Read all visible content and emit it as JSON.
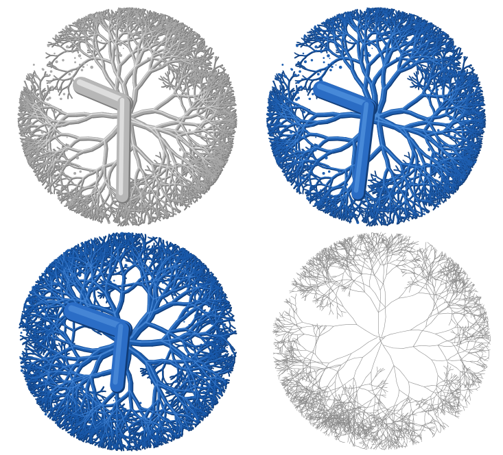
{
  "panels": [
    {
      "id": "panel-tl",
      "render": "surface-gray",
      "color": "#a9a9a9",
      "highlight": "#e4e4e4",
      "trunk": "#b7b7b7"
    },
    {
      "id": "panel-tr",
      "render": "surface-blue",
      "color": "#1f5fb0",
      "highlight": "#4d8fdc",
      "trunk": "#2a6cc4"
    },
    {
      "id": "panel-bl",
      "render": "surface-blue-smooth",
      "color": "#1a5aab",
      "highlight": "#4a8ad8",
      "trunk": "#2b6dc6"
    },
    {
      "id": "panel-br",
      "render": "skeleton-lines",
      "color": "#8c8c8c",
      "highlight": "#b0b0b0",
      "trunk": "#9a9a9a"
    }
  ]
}
